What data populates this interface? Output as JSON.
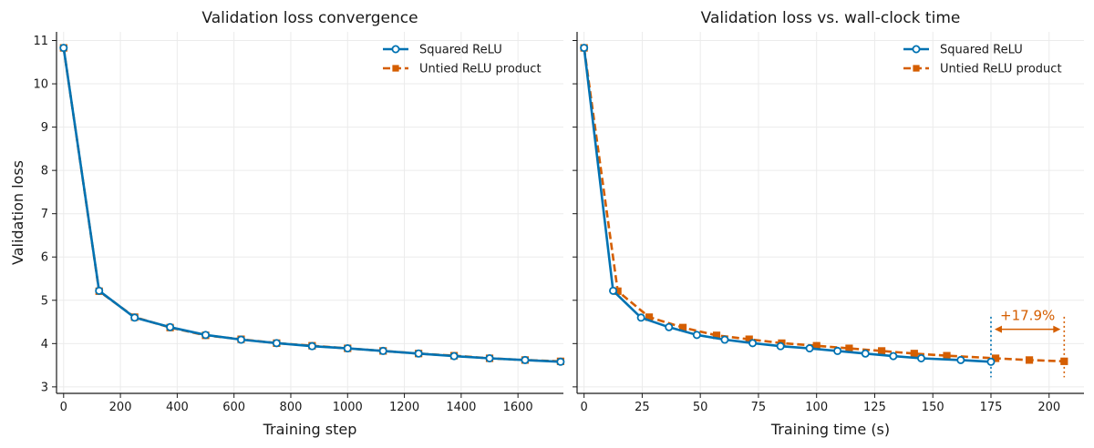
{
  "colors": {
    "squared": "#0072b2",
    "untied": "#d55e00",
    "grid": "#ebebeb",
    "axis": "#1a1a1a"
  },
  "chart_data": [
    {
      "type": "line",
      "title": "Validation loss convergence",
      "xlabel": "Training step",
      "ylabel": "Validation loss",
      "xlim": [
        -25,
        1760
      ],
      "ylim": [
        2.85,
        11.2
      ],
      "xticks": [
        0,
        200,
        400,
        600,
        800,
        1000,
        1200,
        1400,
        1600
      ],
      "yticks": [
        3,
        4,
        5,
        6,
        7,
        8,
        9,
        10,
        11
      ],
      "grid": true,
      "legend_position": "top-right",
      "series": [
        {
          "name": "Squared ReLU",
          "marker": "circle",
          "line": "solid",
          "x": [
            0,
            125,
            250,
            375,
            500,
            625,
            750,
            875,
            1000,
            1125,
            1250,
            1375,
            1500,
            1625,
            1750
          ],
          "y": [
            10.83,
            5.22,
            4.6,
            4.38,
            4.2,
            4.09,
            4.01,
            3.94,
            3.89,
            3.83,
            3.77,
            3.71,
            3.66,
            3.62,
            3.58
          ]
        },
        {
          "name": "Untied ReLU product",
          "marker": "square",
          "line": "dashed",
          "x": [
            0,
            125,
            250,
            375,
            500,
            625,
            750,
            875,
            1000,
            1125,
            1250,
            1375,
            1500,
            1625,
            1750
          ],
          "y": [
            10.83,
            5.21,
            4.61,
            4.37,
            4.19,
            4.1,
            4.01,
            3.95,
            3.89,
            3.83,
            3.77,
            3.72,
            3.66,
            3.62,
            3.59
          ]
        }
      ]
    },
    {
      "type": "line",
      "title": "Validation loss vs. wall-clock time",
      "xlabel": "Training time (s)",
      "ylabel": "",
      "xlim": [
        -3,
        215
      ],
      "ylim": [
        2.85,
        11.2
      ],
      "xticks": [
        0,
        25,
        50,
        75,
        100,
        125,
        150,
        175,
        200
      ],
      "yticks": [
        3,
        4,
        5,
        6,
        7,
        8,
        9,
        10,
        11
      ],
      "grid": true,
      "legend_position": "top-right",
      "series": [
        {
          "name": "Squared ReLU",
          "marker": "circle",
          "line": "solid",
          "x": [
            0,
            12.5,
            24.5,
            36.5,
            48.5,
            60.5,
            72.5,
            84.5,
            97,
            109,
            121,
            133,
            145,
            162,
            175
          ],
          "y": [
            10.83,
            5.22,
            4.6,
            4.38,
            4.2,
            4.09,
            4.01,
            3.94,
            3.89,
            3.83,
            3.77,
            3.71,
            3.66,
            3.62,
            3.58
          ]
        },
        {
          "name": "Untied ReLU product",
          "marker": "square",
          "line": "dashed",
          "x": [
            0,
            14.5,
            28,
            42.5,
            57,
            71,
            85,
            100,
            114,
            128,
            142,
            156,
            177,
            191.5,
            206.5
          ],
          "y": [
            10.83,
            5.21,
            4.61,
            4.37,
            4.19,
            4.1,
            4.01,
            3.95,
            3.89,
            3.83,
            3.77,
            3.72,
            3.66,
            3.62,
            3.59
          ]
        }
      ],
      "annotation": {
        "text": "+17.9%",
        "x_from": 175,
        "x_to": 206.5,
        "y": 4.33
      }
    }
  ]
}
